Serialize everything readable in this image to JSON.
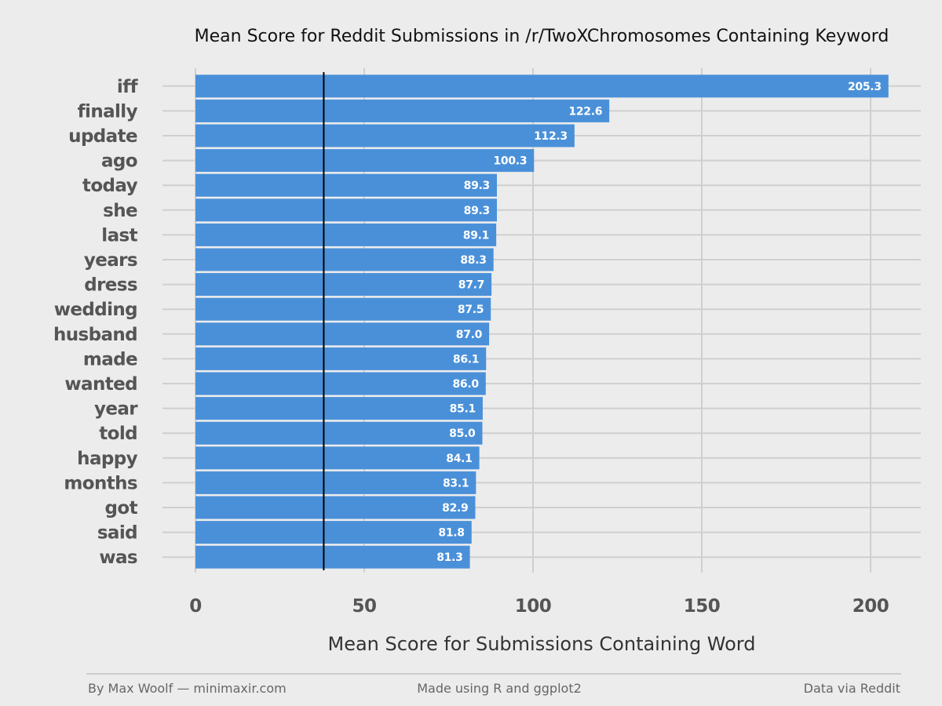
{
  "chart_data": {
    "type": "bar",
    "orientation": "horizontal",
    "title": "Mean Score for Reddit Submissions in /r/TwoXChromosomes Containing Keyword",
    "xlabel": "Mean Score for Submissions Containing Word",
    "ylabel": "",
    "categories": [
      "iff",
      "finally",
      "update",
      "ago",
      "today",
      "she",
      "last",
      "years",
      "dress",
      "wedding",
      "husband",
      "made",
      "wanted",
      "year",
      "told",
      "happy",
      "months",
      "got",
      "said",
      "was"
    ],
    "values": [
      205.3,
      122.6,
      112.3,
      100.3,
      89.3,
      89.3,
      89.1,
      88.3,
      87.7,
      87.5,
      87.0,
      86.1,
      86.0,
      85.1,
      85.0,
      84.1,
      83.1,
      82.9,
      81.8,
      81.3
    ],
    "data_labels": [
      "205.3",
      "122.6",
      "112.3",
      "100.3",
      "89.3",
      "89.3",
      "89.1",
      "88.3",
      "87.7",
      "87.5",
      "87.0",
      "86.1",
      "86.0",
      "85.1",
      "85.0",
      "84.1",
      "83.1",
      "82.9",
      "81.8",
      "81.3"
    ],
    "xlim": [
      0,
      210
    ],
    "xticks": [
      0,
      50,
      100,
      150,
      200
    ],
    "xtick_labels": [
      "0",
      "50",
      "100",
      "150",
      "200"
    ],
    "reference_line": 38,
    "bar_color": "#4a90d9",
    "reference_line_color": "#000000",
    "grid": true,
    "legend": "none"
  },
  "footer": {
    "left": "By Max Woolf — minimaxir.com",
    "center": "Made using R and ggplot2",
    "right": "Data via Reddit"
  }
}
